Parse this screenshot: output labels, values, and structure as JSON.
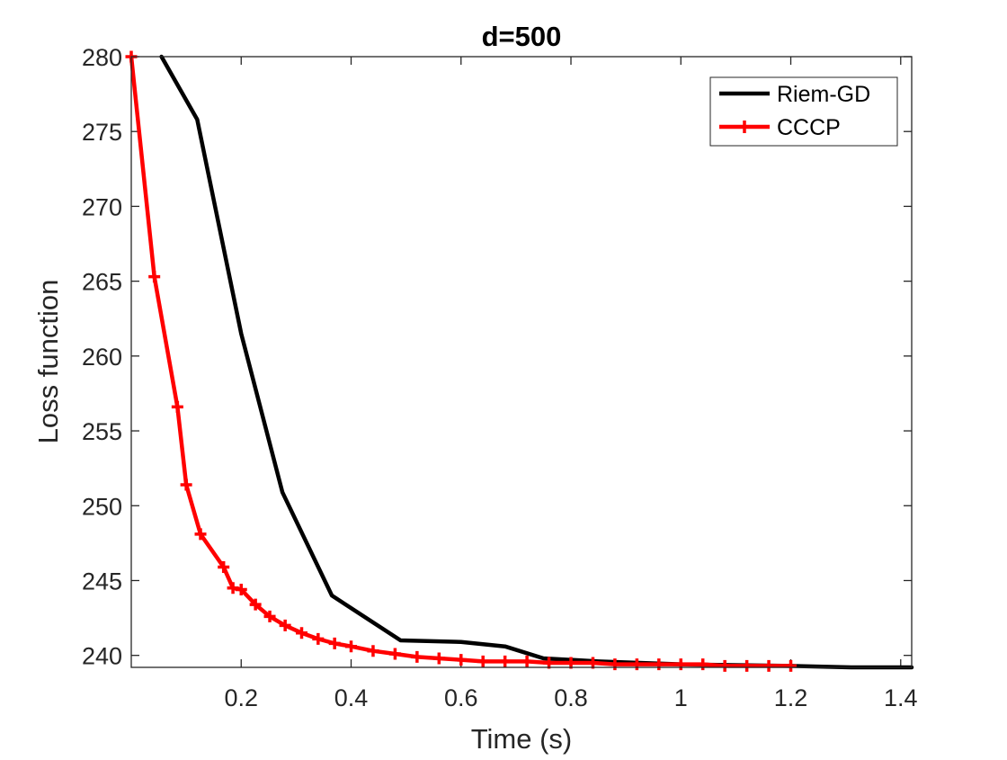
{
  "chart_data": {
    "type": "line",
    "title": "d=500",
    "xlabel": "Time (s)",
    "ylabel": "Loss function",
    "xlim": [
      0,
      1.42
    ],
    "ylim": [
      239.2,
      280
    ],
    "xticks": [
      0.2,
      0.4,
      0.6,
      0.8,
      1,
      1.2,
      1.4
    ],
    "xtick_labels": [
      "0.2",
      "0.4",
      "0.6",
      "0.8",
      "1",
      "1.2",
      "1.4"
    ],
    "yticks": [
      240,
      245,
      250,
      255,
      260,
      265,
      270,
      275,
      280
    ],
    "ytick_labels": [
      "240",
      "245",
      "250",
      "255",
      "260",
      "265",
      "270",
      "275",
      "280"
    ],
    "grid": false,
    "legend_position": "top-right",
    "series": [
      {
        "name": "Riem-GD",
        "color": "#000000",
        "marker": "none",
        "x": [
          0.055,
          0.12,
          0.2,
          0.275,
          0.365,
          0.49,
          0.6,
          0.68,
          0.75,
          0.85,
          1.0,
          1.2,
          1.31,
          1.42
        ],
        "y": [
          280,
          275.8,
          261.5,
          250.9,
          244.0,
          241.0,
          240.9,
          240.6,
          239.8,
          239.6,
          239.4,
          239.3,
          239.2,
          239.2
        ]
      },
      {
        "name": "CCCP",
        "color": "#ff0000",
        "marker": "plus",
        "x": [
          0.0,
          0.042,
          0.084,
          0.1,
          0.126,
          0.168,
          0.185,
          0.2,
          0.226,
          0.252,
          0.28,
          0.31,
          0.34,
          0.37,
          0.4,
          0.44,
          0.48,
          0.52,
          0.56,
          0.6,
          0.64,
          0.68,
          0.72,
          0.76,
          0.8,
          0.84,
          0.88,
          0.92,
          0.96,
          1.0,
          1.04,
          1.08,
          1.12,
          1.16,
          1.2
        ],
        "y": [
          280,
          265.3,
          256.6,
          251.4,
          248.1,
          245.9,
          244.5,
          244.4,
          243.4,
          242.6,
          242.0,
          241.5,
          241.1,
          240.8,
          240.6,
          240.3,
          240.1,
          239.9,
          239.8,
          239.7,
          239.6,
          239.6,
          239.6,
          239.5,
          239.5,
          239.5,
          239.4,
          239.4,
          239.4,
          239.4,
          239.4,
          239.3,
          239.3,
          239.3,
          239.3
        ]
      }
    ]
  }
}
